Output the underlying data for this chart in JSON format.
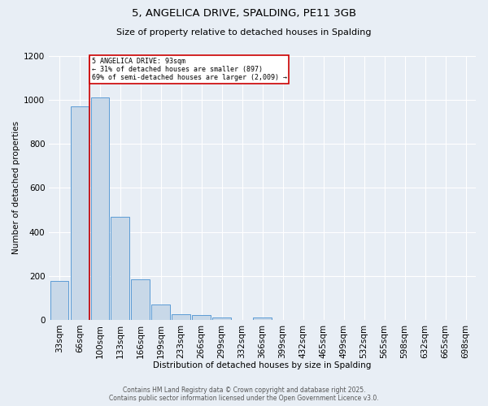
{
  "title_line1": "5, ANGELICA DRIVE, SPALDING, PE11 3GB",
  "title_line2": "Size of property relative to detached houses in Spalding",
  "xlabel": "Distribution of detached houses by size in Spalding",
  "ylabel": "Number of detached properties",
  "categories": [
    "33sqm",
    "66sqm",
    "100sqm",
    "133sqm",
    "166sqm",
    "199sqm",
    "233sqm",
    "266sqm",
    "299sqm",
    "332sqm",
    "366sqm",
    "399sqm",
    "432sqm",
    "465sqm",
    "499sqm",
    "532sqm",
    "565sqm",
    "598sqm",
    "632sqm",
    "665sqm",
    "698sqm"
  ],
  "values": [
    175,
    970,
    1010,
    470,
    185,
    70,
    25,
    20,
    12,
    0,
    10,
    0,
    0,
    0,
    0,
    0,
    0,
    0,
    0,
    0,
    0
  ],
  "bar_color": "#c8d8e8",
  "bar_edge_color": "#5b9bd5",
  "annotation_text_line1": "5 ANGELICA DRIVE: 93sqm",
  "annotation_text_line2": "← 31% of detached houses are smaller (897)",
  "annotation_text_line3": "69% of semi-detached houses are larger (2,009) →",
  "annotation_box_color": "#cc0000",
  "ymax": 1200,
  "footer_line1": "Contains HM Land Registry data © Crown copyright and database right 2025.",
  "footer_line2": "Contains public sector information licensed under the Open Government Licence v3.0.",
  "bg_color": "#e8eef5",
  "plot_bg_color": "#e8eef5",
  "grid_color": "#ffffff"
}
